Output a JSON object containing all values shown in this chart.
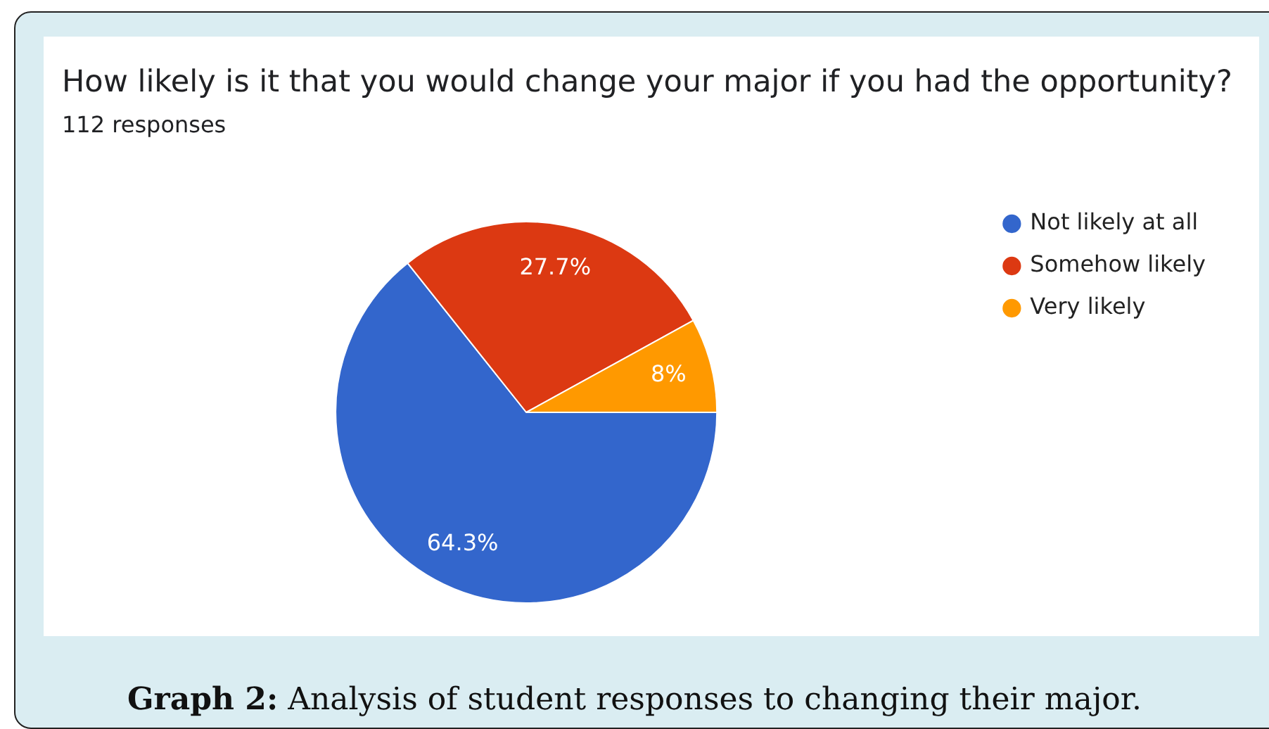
{
  "chart_data": {
    "type": "pie",
    "title": "How likely is it that you would change your major if you had the opportunity?",
    "subtitle": "112 responses",
    "categories": [
      "Not likely at all",
      "Somehow likely",
      "Very likely"
    ],
    "values": [
      64.3,
      27.7,
      8
    ],
    "colors": [
      "#3366cc",
      "#dc3912",
      "#ff9900"
    ],
    "value_labels": [
      "64.3%",
      "27.7%",
      "8%"
    ],
    "legend": "top right",
    "annotations": [
      "Graph 2: Analysis of student responses to changing their major."
    ]
  }
}
